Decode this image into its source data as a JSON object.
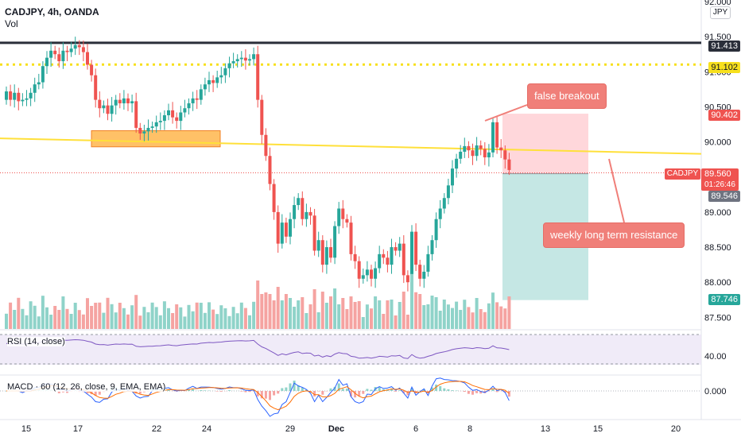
{
  "header": {
    "symbol_line": "CADJPY, 4h, OANDA",
    "vol_label": "Vol",
    "currency_button": "JPY"
  },
  "price_axis": {
    "ticks": [
      "92.000",
      "91.500",
      "91.000",
      "90.500",
      "90.000",
      "89.000",
      "88.500",
      "88.000",
      "87.500"
    ]
  },
  "price_labels": {
    "black_line": "91.413",
    "yellow_dotted": "91.102",
    "tp_top": "90.402",
    "symbol_tag": "CADJPY",
    "current_price": "89.560",
    "countdown": "01:26:46",
    "entry": "89.546",
    "stop_bottom": "87.746"
  },
  "annotations": {
    "false_breakout": "false breakout",
    "resistance": "weekly long term resistance"
  },
  "rsi": {
    "title": "RSI (14, close)",
    "level_label": "40.00"
  },
  "macd": {
    "title": "MACD · 60 (12, 26, close, 9, EMA, EMA)",
    "level_label": "0.000"
  },
  "time_axis": {
    "ticks": [
      "15",
      "17",
      "22",
      "24",
      "29",
      "Dec",
      "6",
      "8",
      "13",
      "15",
      "20"
    ]
  },
  "colors": {
    "up": "#26a69a",
    "down": "#ef5350",
    "accent_yellow": "#f7e01e",
    "resistance_line": "#ffe03a",
    "black_line": "#2a2e39",
    "profit_zone": "#b2dfdb",
    "loss_zone": "#ffcdd2"
  },
  "chart_data": {
    "type": "candlestick",
    "symbol": "CADJPY",
    "interval": "4h",
    "ylim": [
      87.3,
      92.0
    ],
    "close": [
      90.72,
      90.6,
      90.7,
      90.58,
      90.6,
      90.62,
      90.7,
      90.82,
      90.85,
      91.08,
      91.2,
      91.3,
      91.25,
      91.15,
      91.3,
      91.28,
      91.33,
      91.38,
      91.35,
      91.28,
      91.1,
      90.95,
      90.6,
      90.48,
      90.52,
      90.4,
      90.52,
      90.6,
      90.55,
      90.62,
      90.55,
      90.58,
      90.2,
      90.12,
      90.15,
      90.2,
      90.22,
      90.28,
      90.3,
      90.38,
      90.45,
      90.35,
      90.3,
      90.42,
      90.48,
      90.55,
      90.62,
      90.6,
      90.75,
      90.82,
      90.88,
      90.84,
      90.92,
      90.95,
      91.05,
      91.12,
      91.15,
      91.18,
      91.2,
      91.16,
      91.18,
      91.25,
      90.6,
      90.1,
      89.8,
      89.4,
      89.0,
      88.55,
      88.85,
      88.65,
      88.9,
      89.1,
      89.2,
      88.9,
      89.0,
      88.95,
      88.45,
      88.6,
      88.25,
      88.5,
      88.35,
      88.8,
      89.05,
      88.9,
      88.85,
      88.4,
      88.3,
      88.05,
      88.1,
      88.18,
      88.05,
      88.2,
      88.4,
      88.35,
      88.25,
      88.5,
      88.45,
      88.55,
      88.1,
      88.0,
      88.72,
      88.25,
      88.05,
      88.15,
      88.4,
      88.6,
      88.9,
      89.05,
      89.2,
      89.38,
      89.62,
      89.76,
      89.86,
      89.94,
      89.88,
      89.8,
      89.95,
      89.9,
      89.78,
      89.85,
      90.28,
      89.92,
      89.88,
      89.75,
      89.6
    ],
    "rsi": {
      "upper": 70,
      "lower": 30,
      "basis": "close",
      "length": 14
    },
    "macd": {
      "fast": 12,
      "slow": 26,
      "signal": 9,
      "source": "close",
      "timeframe": "60"
    }
  }
}
